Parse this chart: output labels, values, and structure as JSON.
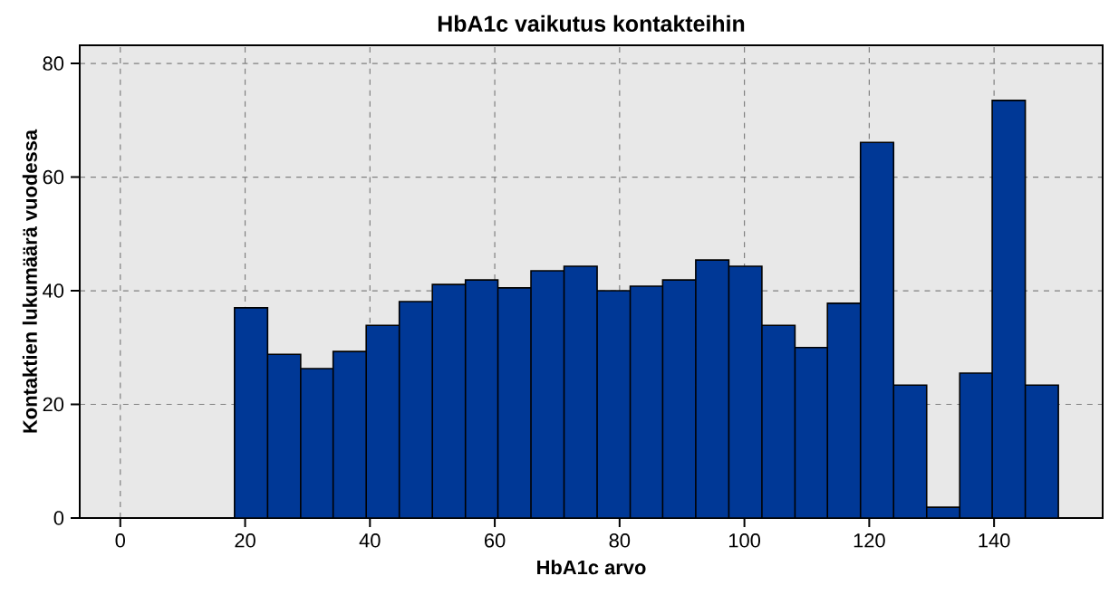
{
  "chart_data": {
    "type": "histogram",
    "title": "HbA1c vaikutus kontakteihin",
    "xlabel": "HbA1c arvo",
    "ylabel": "Kontaktien lukumäärä vuodessa",
    "bins": [
      18.3,
      23.6,
      28.9,
      34.1,
      39.4,
      44.7,
      50.0,
      55.3,
      60.5,
      65.8,
      71.1,
      76.4,
      81.7,
      86.9,
      92.2,
      97.5,
      102.8,
      108.1,
      113.3,
      118.6,
      123.9,
      129.2,
      134.5,
      139.7,
      145.0,
      150.3
    ],
    "values": [
      37.0,
      28.8,
      26.3,
      29.3,
      33.9,
      38.1,
      41.1,
      41.9,
      40.5,
      43.5,
      44.3,
      40.0,
      40.8,
      41.9,
      45.4,
      44.3,
      33.9,
      30.0,
      37.8,
      66.1,
      23.4,
      1.9,
      25.5,
      73.5,
      23.4
    ],
    "color": "#003896",
    "xlim": [
      -6.5,
      157.4
    ],
    "ylim": [
      0,
      83.2
    ],
    "xticks": [
      0,
      20,
      40,
      60,
      80,
      100,
      120,
      140
    ],
    "yticks": [
      0,
      20,
      40,
      60,
      80
    ],
    "grid": true,
    "line_style": "dashed"
  }
}
